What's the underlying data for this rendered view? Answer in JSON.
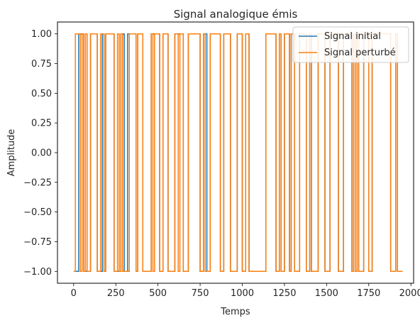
{
  "chart_data": {
    "type": "line",
    "title": "Signal analogique émis",
    "xlabel": "Temps",
    "ylabel": "Amplitude",
    "xlim": [
      -96,
      2016
    ],
    "ylim": [
      -1.1,
      1.1
    ],
    "xticks": [
      0,
      250,
      500,
      750,
      1000,
      1250,
      1500,
      1750,
      2000
    ],
    "yticks": [
      1.0,
      0.75,
      0.5,
      0.25,
      0.0,
      -0.25,
      -0.5,
      -0.75,
      -1.0
    ],
    "xtick_labels": [
      "0",
      "250",
      "500",
      "750",
      "1000",
      "1250",
      "1500",
      "1750",
      "2000"
    ],
    "ytick_labels": [
      "1.00",
      "0.75",
      "0.50",
      "0.25",
      "0.00",
      "−0.25",
      "−0.50",
      "−0.75",
      "−1.00"
    ],
    "legend_position": "top-right",
    "grid": false,
    "step_width": 10,
    "series": [
      {
        "name": "Signal initial",
        "color": "#1f77b4",
        "values": [
          -1,
          -1,
          -1,
          1,
          1,
          1,
          -1,
          -1,
          -1,
          -1,
          1,
          1,
          1,
          1,
          -1,
          -1,
          -1,
          1,
          -1,
          1,
          1,
          1,
          1,
          1,
          -1,
          -1,
          -1,
          -1,
          1,
          1,
          -1,
          -1,
          1,
          1,
          1,
          1,
          1,
          -1,
          1,
          1,
          1,
          -1,
          -1,
          -1,
          -1,
          -1,
          1,
          1,
          1,
          1,
          1,
          -1,
          -1,
          1,
          1,
          1,
          -1,
          -1,
          -1,
          -1,
          1,
          1,
          1,
          1,
          1,
          -1,
          -1,
          -1,
          1,
          1,
          1,
          1,
          1,
          1,
          1,
          -1,
          -1,
          1,
          1,
          -1,
          -1,
          1,
          1,
          1,
          1,
          1,
          1,
          -1,
          -1,
          1,
          1,
          1,
          1,
          -1,
          -1,
          -1,
          -1,
          1,
          1,
          1,
          -1,
          -1,
          1,
          1,
          -1,
          -1,
          -1,
          -1,
          -1,
          -1,
          -1,
          -1,
          -1,
          -1,
          1,
          1,
          1,
          1,
          1,
          1,
          -1,
          -1,
          1,
          -1,
          -1,
          1,
          1,
          1,
          -1,
          1,
          1,
          -1,
          -1,
          -1,
          1,
          1,
          1,
          1,
          -1,
          -1,
          1,
          -1,
          -1,
          -1,
          -1,
          1,
          1,
          1,
          1,
          -1,
          -1,
          -1,
          1,
          1,
          1,
          1,
          1,
          -1,
          -1,
          -1,
          1,
          1,
          1,
          1,
          1,
          -1,
          1,
          1,
          1,
          -1,
          -1,
          -1,
          1,
          1,
          1,
          -1,
          -1,
          1,
          1,
          1,
          1,
          1,
          1,
          1,
          1,
          1,
          1,
          1,
          -1,
          -1,
          -1,
          1,
          -1,
          -1,
          -1
        ]
      },
      {
        "name": "Signal perturbé",
        "color": "#ff7f0e",
        "values": [
          -1,
          1,
          1,
          1,
          -1,
          1,
          -1,
          1,
          -1,
          -1,
          1,
          1,
          1,
          1,
          -1,
          -1,
          1,
          1,
          -1,
          1,
          1,
          1,
          1,
          1,
          -1,
          -1,
          1,
          -1,
          1,
          -1,
          -1,
          -1,
          -1,
          1,
          1,
          1,
          1,
          -1,
          1,
          1,
          1,
          -1,
          -1,
          -1,
          -1,
          -1,
          1,
          -1,
          1,
          1,
          1,
          -1,
          -1,
          1,
          1,
          1,
          -1,
          -1,
          -1,
          -1,
          1,
          1,
          -1,
          1,
          1,
          -1,
          -1,
          -1,
          1,
          1,
          1,
          1,
          1,
          1,
          1,
          -1,
          -1,
          1,
          -1,
          -1,
          -1,
          1,
          1,
          1,
          1,
          1,
          1,
          -1,
          -1,
          1,
          1,
          1,
          1,
          -1,
          -1,
          -1,
          -1,
          1,
          1,
          1,
          -1,
          -1,
          1,
          1,
          -1,
          -1,
          -1,
          -1,
          -1,
          -1,
          -1,
          -1,
          -1,
          -1,
          1,
          1,
          1,
          1,
          1,
          1,
          -1,
          -1,
          1,
          -1,
          -1,
          1,
          1,
          1,
          -1,
          1,
          1,
          -1,
          -1,
          -1,
          1,
          1,
          1,
          1,
          -1,
          -1,
          1,
          -1,
          -1,
          -1,
          -1,
          1,
          1,
          1,
          1,
          -1,
          -1,
          -1,
          1,
          1,
          1,
          1,
          1,
          -1,
          -1,
          -1,
          1,
          1,
          1,
          1,
          1,
          -1,
          1,
          -1,
          1,
          -1,
          -1,
          -1,
          1,
          1,
          1,
          -1,
          -1,
          1,
          1,
          1,
          1,
          1,
          1,
          1,
          1,
          1,
          1,
          1,
          -1,
          -1,
          -1,
          1,
          -1,
          -1,
          -1
        ]
      }
    ]
  }
}
